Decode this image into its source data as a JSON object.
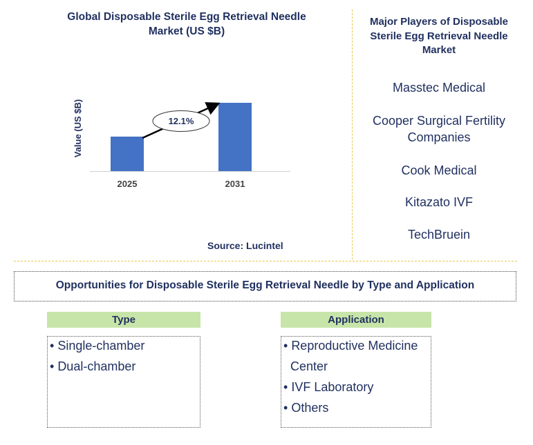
{
  "chart_data": {
    "type": "bar",
    "title": "Global Disposable Sterile Egg Retrieval Needle Market (US $B)",
    "title_lines": [
      "Global Disposable Sterile Egg Retrieval Needle",
      "Market (US $B)"
    ],
    "categories": [
      "2025",
      "2031"
    ],
    "values": [
      1.0,
      1.98
    ],
    "ylabel": "Value (US $B)",
    "xlabel": "",
    "ylim": [
      0,
      2.0
    ],
    "grid": false,
    "bar_color": "#4472c4",
    "annotation": {
      "label": "12.1%",
      "from": "2025",
      "to": "2031"
    }
  },
  "source": "Source: Lucintel",
  "players": {
    "title_lines": [
      "Major Players of Disposable",
      "Sterile Egg Retrieval Needle",
      "Market"
    ],
    "items": [
      "Masstec Medical",
      "Cooper Surgical Fertility Companies",
      "Cook Medical",
      "Kitazato IVF",
      "TechBruein"
    ],
    "item_lines": [
      [
        "Masstec Medical"
      ],
      [
        "Cooper Surgical Fertility",
        "Companies"
      ],
      [
        "Cook Medical"
      ],
      [
        "Kitazato IVF"
      ],
      [
        "TechBruein"
      ]
    ]
  },
  "opportunities": {
    "title": "Opportunities for Disposable Sterile Egg Retrieval Needle by Type and Application",
    "type": {
      "header": "Type",
      "items": [
        "Single-chamber",
        "Dual-chamber"
      ]
    },
    "application": {
      "header": "Application",
      "items": [
        "Reproductive Medicine Center",
        "IVF Laboratory",
        "Others"
      ],
      "item_lines": [
        [
          "Reproductive Medicine",
          "Center"
        ],
        [
          "IVF Laboratory"
        ],
        [
          "Others"
        ]
      ]
    }
  },
  "colors": {
    "text": "#1f2f5f",
    "bar": "#4472c4",
    "divider": "#e8c84a",
    "header_bg": "#c7e5a8"
  }
}
